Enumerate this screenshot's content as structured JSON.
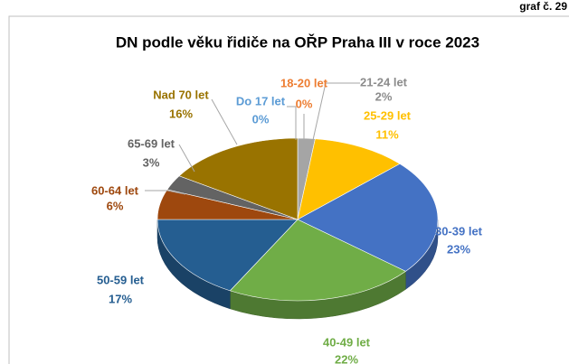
{
  "chart_data": {
    "type": "pie3d",
    "title": "DN podle věku řidiče na OŘP Praha III  v roce 2023",
    "note": "graf č. 29",
    "categories": [
      "Do 17 let",
      "18-20 let",
      "21-24 let",
      "25-29 let",
      "30-39 let",
      "40-49 let",
      "50-59 let",
      "60-64 let",
      "65-69 let",
      "Nad 70 let"
    ],
    "values": [
      0,
      0,
      2,
      11,
      23,
      22,
      17,
      6,
      3,
      16
    ],
    "value_labels": [
      "0%",
      "0%",
      "2%",
      "11%",
      "23%",
      "22%",
      "17%",
      "6%",
      "3%",
      "16%"
    ],
    "colors": [
      "#5b9bd5",
      "#ed7d31",
      "#a5a5a5",
      "#ffc000",
      "#4472c4",
      "#70ad47",
      "#255e91",
      "#9e480e",
      "#636363",
      "#997300"
    ]
  }
}
